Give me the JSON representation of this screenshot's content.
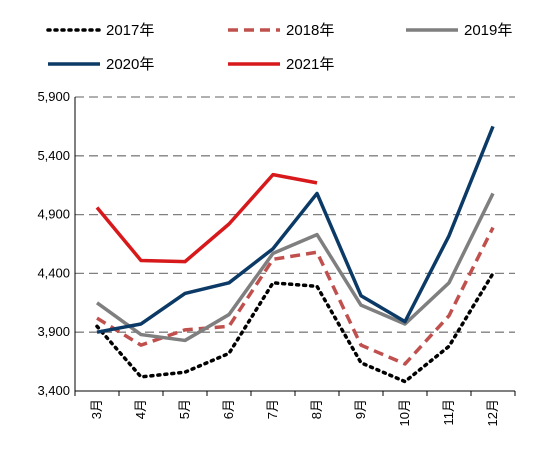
{
  "chart_data": {
    "type": "line",
    "title": "",
    "xlabel": "",
    "ylabel": "",
    "categories": [
      "3月",
      "4月",
      "5月",
      "6月",
      "7月",
      "8月",
      "9月",
      "10月",
      "11月",
      "12月"
    ],
    "ylim": [
      3400,
      5900
    ],
    "yticks": [
      3400,
      3900,
      4400,
      4900,
      5400,
      5900
    ],
    "ytick_labels": [
      "3,400",
      "3,900",
      "4,400",
      "4,900",
      "5,400",
      "5,900"
    ],
    "grid": "horizontal dashed",
    "legend_placement": "top",
    "series": [
      {
        "name": "2017年",
        "color": "#000000",
        "style": "dotted",
        "values": [
          3950,
          3520,
          3560,
          3720,
          4320,
          4290,
          3640,
          3480,
          3780,
          4400
        ]
      },
      {
        "name": "2018年",
        "color": "#c0504d",
        "style": "dashed",
        "values": [
          4020,
          3790,
          3920,
          3950,
          4520,
          4580,
          3790,
          3630,
          4040,
          4790
        ]
      },
      {
        "name": "2019年",
        "color": "#7f7f7f",
        "style": "solid",
        "values": [
          4150,
          3880,
          3830,
          4050,
          4570,
          4730,
          4130,
          3970,
          4320,
          5080
        ]
      },
      {
        "name": "2020年",
        "color": "#0b3a66",
        "style": "solid",
        "values": [
          3900,
          3970,
          4230,
          4320,
          4610,
          5080,
          4210,
          3990,
          4720,
          5650
        ]
      },
      {
        "name": "2021年",
        "color": "#d7191c",
        "style": "solid",
        "values": [
          4960,
          4510,
          4500,
          4820,
          5240,
          5170,
          null,
          null,
          null,
          null
        ]
      }
    ]
  }
}
